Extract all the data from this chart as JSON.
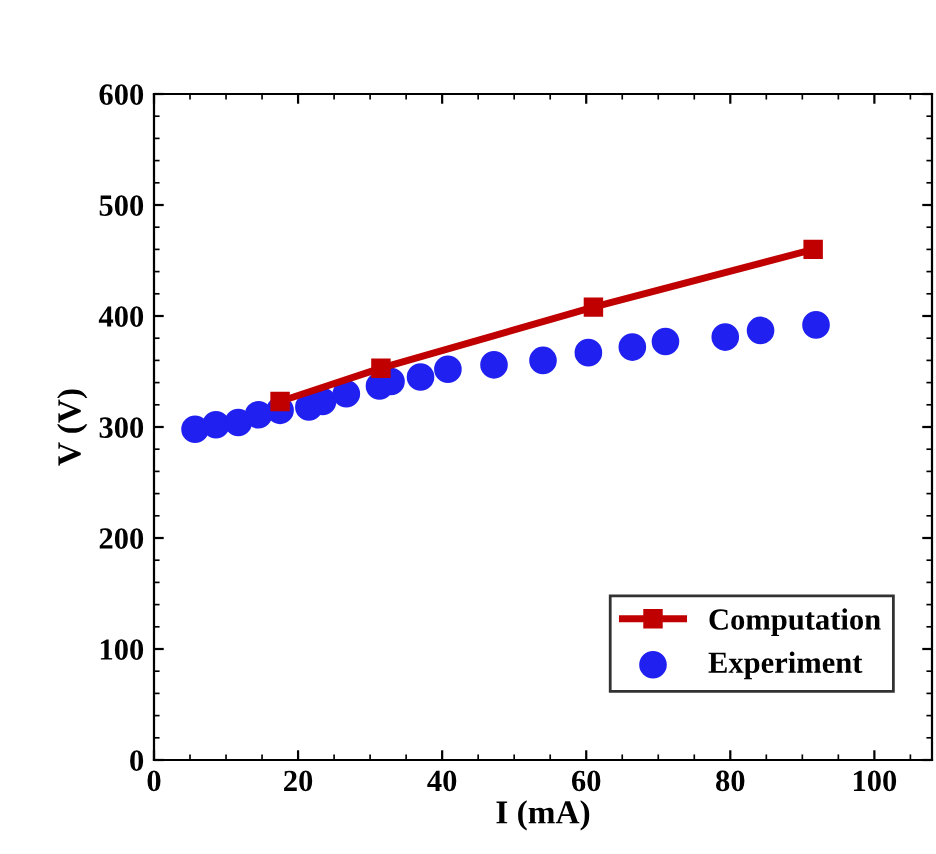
{
  "chart_data": {
    "type": "scatter",
    "xlabel": "I (mA)",
    "ylabel": "V (V)",
    "xlim": [
      0,
      108
    ],
    "ylim": [
      0,
      600
    ],
    "xticks": [
      0,
      20,
      40,
      60,
      80,
      100
    ],
    "yticks": [
      0,
      100,
      200,
      300,
      400,
      500,
      600
    ],
    "legend": "bottom right",
    "grid": false,
    "series": [
      {
        "name": "Computation",
        "type": "line",
        "color": "#c00000",
        "marker": "square",
        "x": [
          17.5,
          31.5,
          61,
          91.5
        ],
        "values": [
          323,
          353,
          408,
          460
        ]
      },
      {
        "name": "Experiment",
        "color": "#2020f0",
        "marker": "circle",
        "x": [
          5.7,
          8.6,
          11.7,
          14.5,
          17.5,
          21.5,
          23.4,
          26.7,
          31.3,
          32.9,
          37,
          40.8,
          47.2,
          54,
          60.3,
          66.4,
          71,
          79.3,
          84.2,
          91.9
        ],
        "values": [
          298,
          302,
          304,
          311,
          315,
          318,
          323,
          330,
          337,
          341,
          345,
          352,
          356,
          360,
          367,
          372,
          377,
          381,
          387,
          392
        ]
      }
    ]
  }
}
